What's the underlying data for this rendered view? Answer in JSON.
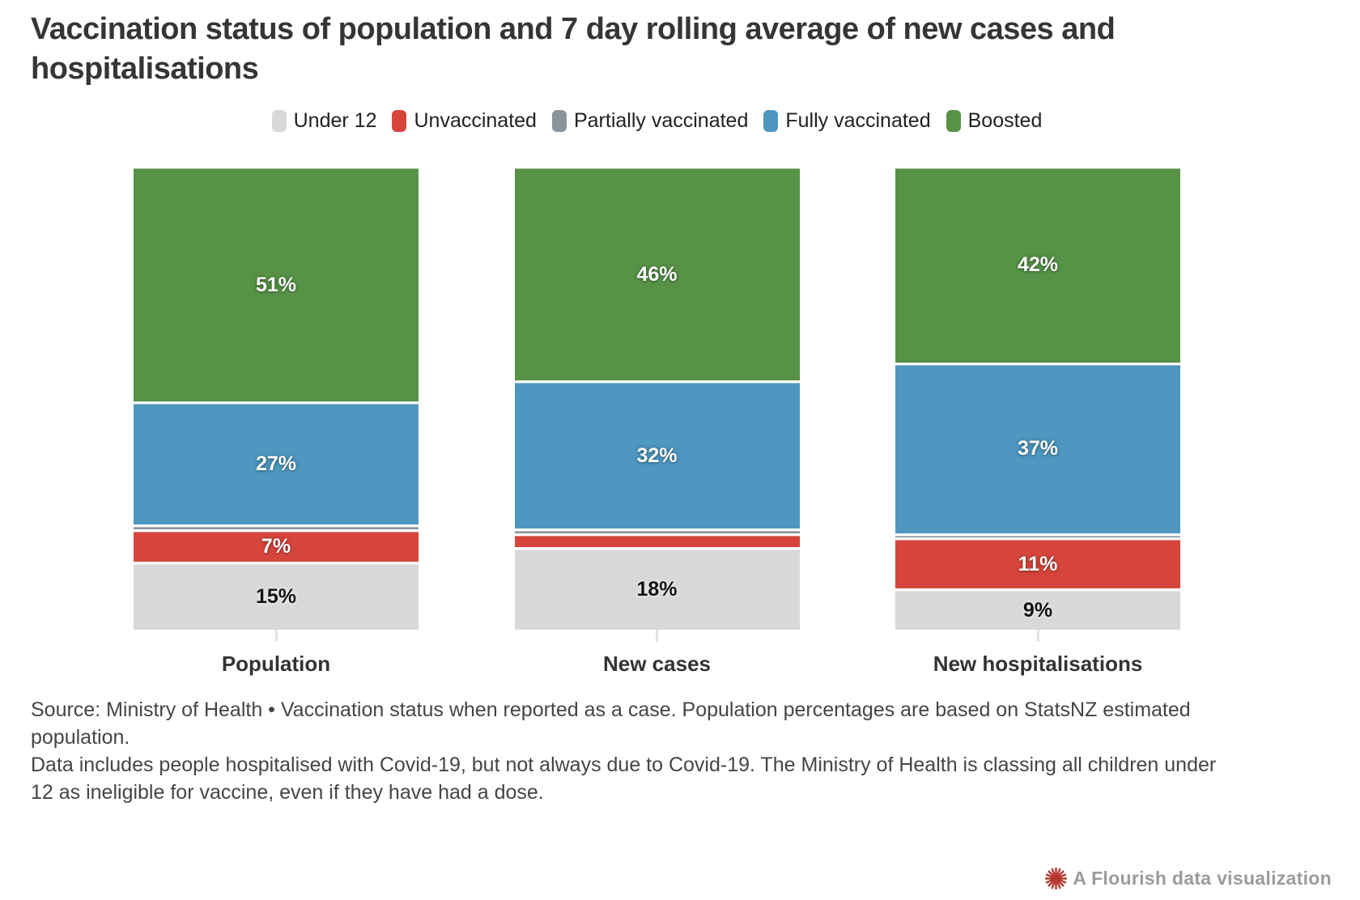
{
  "title": "Vaccination status of population and 7 day rolling average of new cases and hospitalisations",
  "chart_data": {
    "type": "bar",
    "subtype": "stacked-percent",
    "title": "Vaccination status of population and 7 day rolling average of new cases and hospitalisations",
    "categories": [
      "Population",
      "New cases",
      "New hospitalisations"
    ],
    "series": [
      {
        "name": "Under 12",
        "color": "#d8d8d8",
        "label_style": "dark",
        "values": [
          15,
          18,
          9
        ]
      },
      {
        "name": "Unvaccinated",
        "color": "#d6453c",
        "label_style": "light",
        "values": [
          7,
          3,
          11
        ]
      },
      {
        "name": "Partially vaccinated",
        "color": "#8b949b",
        "label_style": "light",
        "values": [
          1,
          1,
          1
        ]
      },
      {
        "name": "Fully vaccinated",
        "color": "#4d97c0",
        "label_style": "light",
        "values": [
          27,
          32,
          37
        ]
      },
      {
        "name": "Boosted",
        "color": "#579247",
        "label_style": "light",
        "values": [
          51,
          46,
          42
        ]
      }
    ],
    "value_suffix": "%",
    "label_min_value": 5,
    "stack_order": "bottom-to-top",
    "ylim": [
      0,
      100
    ],
    "grid": false,
    "legend_position": "top-center",
    "axis_tick_color": "#e2e2e2"
  },
  "footer": {
    "source": "Source: Ministry of Health • Vaccination status when reported as a case. Population percentages are based on StatsNZ estimated population.",
    "note": "Data includes people hospitalised with Covid-19, but not always due to Covid-19. The Ministry of Health is classing all children under 12 as ineligible for vaccine, even if they have had a dose."
  },
  "attribution": {
    "label": "A Flourish data visualization",
    "icon_color": "#b5372e",
    "text_color": "#9b9b9b"
  }
}
